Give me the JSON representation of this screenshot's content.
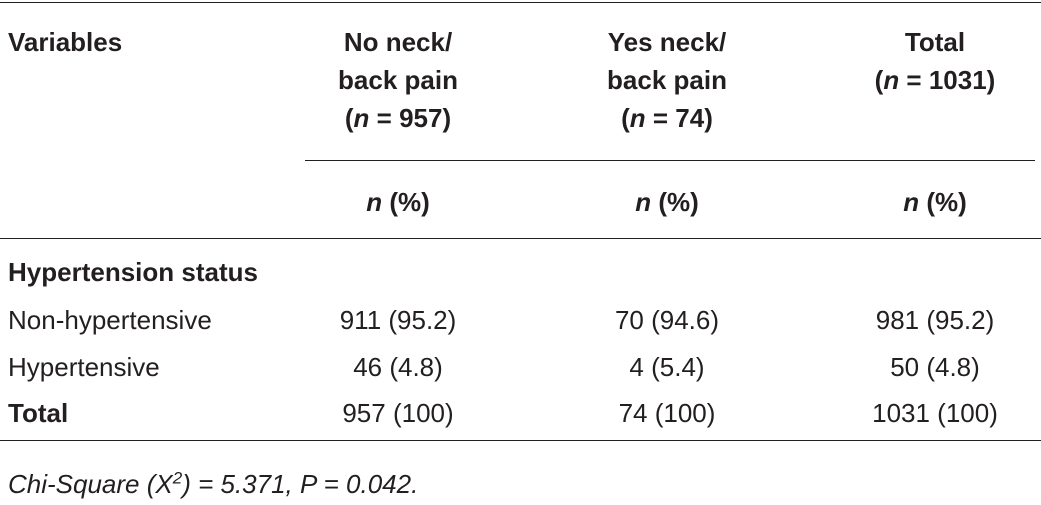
{
  "table": {
    "header": [
      "Variables"
    ],
    "columns": [
      {
        "title": [
          "No neck/",
          "back pain"
        ],
        "count": [
          "(",
          "n",
          " = 957)"
        ]
      },
      {
        "title": [
          "Yes neck/",
          "back pain"
        ],
        "count": [
          "(",
          "n",
          " = 74)"
        ]
      },
      {
        "title": [
          "Total"
        ],
        "count": [
          "(",
          "n",
          " = 1031)"
        ]
      }
    ],
    "subheader": [
      [
        "n",
        " (%)"
      ],
      [
        "n",
        " (%)"
      ],
      [
        "n",
        " (%)"
      ]
    ],
    "section": "Hypertension status",
    "rows": [
      [
        "Non-hypertensive",
        "911 (95.2)",
        "70 (94.6)",
        "981 (95.2)"
      ],
      [
        "Hypertensive",
        "46 (4.8)",
        "4 (5.4)",
        "50 (4.8)"
      ],
      [
        "Total",
        "957 (100)",
        "74 (100)",
        "1031 (100)"
      ]
    ]
  },
  "footnote": [
    "Chi-Square (X",
    "2",
    ") = 5.371, P = 0.042."
  ]
}
